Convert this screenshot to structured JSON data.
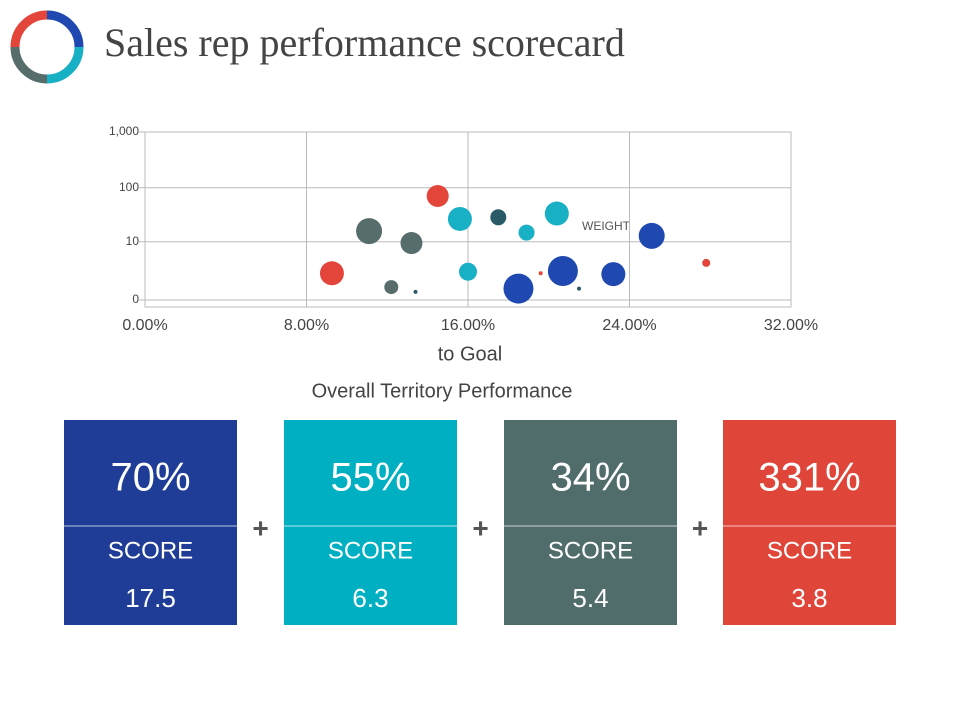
{
  "chart_data": {
    "type": "scatter",
    "title": "Sales rep performance scorecard",
    "x_label": "to Goal",
    "annotation": "WEIGHT",
    "x": [
      9.26,
      11.1,
      12.2,
      13.4,
      13.2,
      14.5,
      15.6,
      16.0,
      17.5,
      18.5,
      18.9,
      19.6,
      20.4,
      20.7,
      21.5,
      23.2,
      25.1,
      27.8
    ],
    "y": [
      2.0,
      16,
      0.7,
      0.4,
      9.4,
      71,
      27,
      2.2,
      29,
      0.6,
      15,
      2.0,
      34,
      2.3,
      0.6,
      1.9,
      13,
      3.6
    ],
    "sizes": [
      12,
      13,
      7,
      2,
      11,
      11,
      12,
      9,
      8,
      15,
      8,
      2,
      12,
      15,
      2,
      12,
      13,
      4
    ],
    "colors": [
      "#e4453a",
      "#566d6c",
      "#566d6c",
      "#2a5a66",
      "#566d6c",
      "#e4453a",
      "#17b0c4",
      "#17b0c4",
      "#2a5a66",
      "#1f48b0",
      "#17b0c4",
      "#e4453a",
      "#17b0c4",
      "#1f48b0",
      "#2a5a66",
      "#1f48b0",
      "#1f48b0",
      "#e4453a"
    ],
    "xlim": [
      0,
      32
    ],
    "xticks": [
      {
        "value": 0,
        "label": "0.00%"
      },
      {
        "value": 8,
        "label": "8.00%"
      },
      {
        "value": 16,
        "label": "16.00%"
      },
      {
        "value": 24,
        "label": "24.00%"
      },
      {
        "value": 32,
        "label": "32.00%"
      }
    ],
    "yscale": "symlog",
    "ylim": [
      0,
      1000
    ],
    "yticks": [
      0,
      10,
      100,
      {
        "value": 1000,
        "label": "1,000"
      }
    ],
    "grid": true
  },
  "section_title": "Overall Territory Performance",
  "operator": "+",
  "cards": [
    {
      "percent": "70%",
      "label": "SCORE",
      "score": "17.5",
      "color": "#1f3d96"
    },
    {
      "percent": "55%",
      "label": "SCORE",
      "score": "6.3",
      "color": "#00b0c2"
    },
    {
      "percent": "34%",
      "label": "SCORE",
      "score": "5.4",
      "color": "#516d6b"
    },
    {
      "percent": "331%",
      "label": "SCORE",
      "score": "3.8",
      "color": "#e0453a"
    }
  ]
}
